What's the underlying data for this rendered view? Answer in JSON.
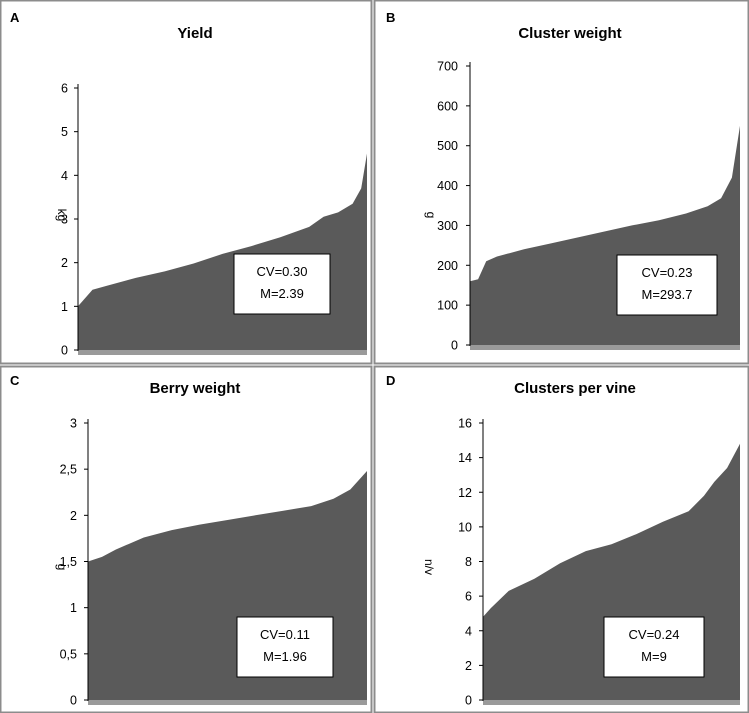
{
  "colors": {
    "area": "#5a5a5a",
    "axis_strip": "#9a9a9a",
    "border": "#8c8c8c"
  },
  "chart_data": [
    {
      "id": "A",
      "type": "area",
      "title": "Yield",
      "ylabel": "kg",
      "ylim": [
        0,
        6
      ],
      "yticks": [
        "0",
        "1",
        "2",
        "3",
        "4",
        "5",
        "6"
      ],
      "stat": {
        "cv": "CV=0.30",
        "mean": "M=2.39"
      },
      "series": [
        {
          "x": [
            0,
            0.05,
            0.1,
            0.2,
            0.3,
            0.4,
            0.5,
            0.6,
            0.7,
            0.8,
            0.85,
            0.9,
            0.95,
            0.98,
            1.0
          ],
          "values": [
            1.0,
            1.38,
            1.47,
            1.65,
            1.8,
            1.98,
            2.2,
            2.38,
            2.58,
            2.82,
            3.05,
            3.15,
            3.35,
            3.7,
            4.5
          ]
        }
      ]
    },
    {
      "id": "B",
      "type": "area",
      "title": "Cluster weight",
      "ylabel": "g",
      "ylim": [
        0,
        700
      ],
      "yticks": [
        "0",
        "100",
        "200",
        "300",
        "400",
        "500",
        "600",
        "700"
      ],
      "stat": {
        "cv": "CV=0.23",
        "mean": "M=293.7"
      },
      "series": [
        {
          "x": [
            0,
            0.03,
            0.06,
            0.1,
            0.2,
            0.3,
            0.4,
            0.5,
            0.6,
            0.7,
            0.8,
            0.88,
            0.93,
            0.97,
            1.0
          ],
          "values": [
            160,
            165,
            210,
            222,
            240,
            255,
            270,
            285,
            300,
            313,
            330,
            348,
            368,
            420,
            550
          ]
        }
      ]
    },
    {
      "id": "C",
      "type": "area",
      "title": "Berry  weight",
      "ylabel": "g",
      "ylim": [
        0,
        3
      ],
      "yticks": [
        "0",
        "0,5",
        "1",
        "1,5",
        "2",
        "2,5",
        "3"
      ],
      "stat": {
        "cv": "CV=0.11",
        "mean": "M=1.96"
      },
      "series": [
        {
          "x": [
            0,
            0.05,
            0.1,
            0.2,
            0.3,
            0.4,
            0.5,
            0.6,
            0.7,
            0.8,
            0.88,
            0.94,
            1.0
          ],
          "values": [
            1.5,
            1.55,
            1.63,
            1.76,
            1.84,
            1.9,
            1.95,
            2.0,
            2.05,
            2.1,
            2.18,
            2.28,
            2.48
          ]
        }
      ]
    },
    {
      "id": "D",
      "type": "area",
      "title": "Clusters per vine",
      "ylabel": "n/v",
      "ylim": [
        0,
        16
      ],
      "yticks": [
        "0",
        "2",
        "4",
        "6",
        "8",
        "10",
        "12",
        "14",
        "16"
      ],
      "stat": {
        "cv": "CV=0.24",
        "mean": "M=9"
      },
      "series": [
        {
          "x": [
            0,
            0.03,
            0.1,
            0.2,
            0.3,
            0.4,
            0.5,
            0.6,
            0.7,
            0.8,
            0.86,
            0.9,
            0.95,
            1.0
          ],
          "values": [
            4.8,
            5.3,
            6.3,
            7.0,
            7.9,
            8.6,
            9.0,
            9.6,
            10.3,
            10.9,
            11.8,
            12.6,
            13.4,
            14.8
          ]
        }
      ]
    }
  ]
}
